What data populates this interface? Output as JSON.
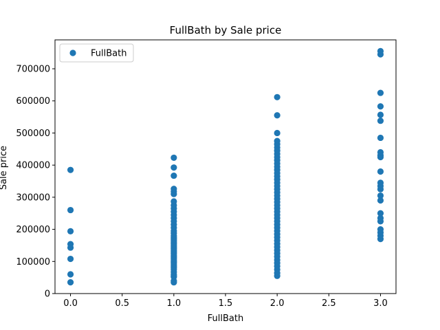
{
  "chart_data": {
    "type": "scatter",
    "title": "FullBath by Sale price",
    "xlabel": "FullBath",
    "ylabel": "Sale price",
    "xlim": [
      -0.15,
      3.15
    ],
    "ylim": [
      0,
      790000
    ],
    "x_ticks": [
      0.0,
      0.5,
      1.0,
      1.5,
      2.0,
      2.5,
      3.0
    ],
    "x_tick_labels": [
      "0.0",
      "0.5",
      "1.0",
      "1.5",
      "2.0",
      "2.5",
      "3.0"
    ],
    "y_ticks": [
      0,
      100000,
      200000,
      300000,
      400000,
      500000,
      600000,
      700000
    ],
    "y_tick_labels": [
      "0",
      "100000",
      "200000",
      "300000",
      "400000",
      "500000",
      "600000",
      "700000"
    ],
    "grid": false,
    "legend_position": "top-left",
    "series": [
      {
        "name": "FullBath",
        "color": "#1f77b4",
        "points": [
          {
            "x": 0,
            "y": 35000
          },
          {
            "x": 0,
            "y": 60000
          },
          {
            "x": 0,
            "y": 108000
          },
          {
            "x": 0,
            "y": 143000
          },
          {
            "x": 0,
            "y": 154000
          },
          {
            "x": 0,
            "y": 194000
          },
          {
            "x": 0,
            "y": 260000
          },
          {
            "x": 0,
            "y": 385000
          },
          {
            "x": 1,
            "y": 34900
          },
          {
            "x": 1,
            "y": 39300
          },
          {
            "x": 1,
            "y": 52000
          },
          {
            "x": 1,
            "y": 55000
          },
          {
            "x": 1,
            "y": 60000
          },
          {
            "x": 1,
            "y": 67000
          },
          {
            "x": 1,
            "y": 75000
          },
          {
            "x": 1,
            "y": 80000
          },
          {
            "x": 1,
            "y": 85000
          },
          {
            "x": 1,
            "y": 90000
          },
          {
            "x": 1,
            "y": 95000
          },
          {
            "x": 1,
            "y": 100000
          },
          {
            "x": 1,
            "y": 105000
          },
          {
            "x": 1,
            "y": 110000
          },
          {
            "x": 1,
            "y": 115000
          },
          {
            "x": 1,
            "y": 120000
          },
          {
            "x": 1,
            "y": 125000
          },
          {
            "x": 1,
            "y": 130000
          },
          {
            "x": 1,
            "y": 135000
          },
          {
            "x": 1,
            "y": 140000
          },
          {
            "x": 1,
            "y": 145000
          },
          {
            "x": 1,
            "y": 150000
          },
          {
            "x": 1,
            "y": 155000
          },
          {
            "x": 1,
            "y": 160000
          },
          {
            "x": 1,
            "y": 165000
          },
          {
            "x": 1,
            "y": 170000
          },
          {
            "x": 1,
            "y": 175000
          },
          {
            "x": 1,
            "y": 180000
          },
          {
            "x": 1,
            "y": 188000
          },
          {
            "x": 1,
            "y": 195000
          },
          {
            "x": 1,
            "y": 205000
          },
          {
            "x": 1,
            "y": 215000
          },
          {
            "x": 1,
            "y": 225000
          },
          {
            "x": 1,
            "y": 235000
          },
          {
            "x": 1,
            "y": 245000
          },
          {
            "x": 1,
            "y": 255000
          },
          {
            "x": 1,
            "y": 265000
          },
          {
            "x": 1,
            "y": 275000
          },
          {
            "x": 1,
            "y": 287000
          },
          {
            "x": 1,
            "y": 310000
          },
          {
            "x": 1,
            "y": 318000
          },
          {
            "x": 1,
            "y": 326000
          },
          {
            "x": 1,
            "y": 367000
          },
          {
            "x": 1,
            "y": 392500
          },
          {
            "x": 1,
            "y": 423000
          },
          {
            "x": 2,
            "y": 55000
          },
          {
            "x": 2,
            "y": 64000
          },
          {
            "x": 2,
            "y": 75000
          },
          {
            "x": 2,
            "y": 85000
          },
          {
            "x": 2,
            "y": 95000
          },
          {
            "x": 2,
            "y": 105000
          },
          {
            "x": 2,
            "y": 115000
          },
          {
            "x": 2,
            "y": 125000
          },
          {
            "x": 2,
            "y": 135000
          },
          {
            "x": 2,
            "y": 145000
          },
          {
            "x": 2,
            "y": 155000
          },
          {
            "x": 2,
            "y": 165000
          },
          {
            "x": 2,
            "y": 175000
          },
          {
            "x": 2,
            "y": 185000
          },
          {
            "x": 2,
            "y": 195000
          },
          {
            "x": 2,
            "y": 205000
          },
          {
            "x": 2,
            "y": 215000
          },
          {
            "x": 2,
            "y": 225000
          },
          {
            "x": 2,
            "y": 235000
          },
          {
            "x": 2,
            "y": 245000
          },
          {
            "x": 2,
            "y": 255000
          },
          {
            "x": 2,
            "y": 265000
          },
          {
            "x": 2,
            "y": 275000
          },
          {
            "x": 2,
            "y": 285000
          },
          {
            "x": 2,
            "y": 295000
          },
          {
            "x": 2,
            "y": 305000
          },
          {
            "x": 2,
            "y": 315000
          },
          {
            "x": 2,
            "y": 325000
          },
          {
            "x": 2,
            "y": 335000
          },
          {
            "x": 2,
            "y": 345000
          },
          {
            "x": 2,
            "y": 355000
          },
          {
            "x": 2,
            "y": 365000
          },
          {
            "x": 2,
            "y": 375000
          },
          {
            "x": 2,
            "y": 385000
          },
          {
            "x": 2,
            "y": 395000
          },
          {
            "x": 2,
            "y": 405000
          },
          {
            "x": 2,
            "y": 415000
          },
          {
            "x": 2,
            "y": 425000
          },
          {
            "x": 2,
            "y": 435000
          },
          {
            "x": 2,
            "y": 445000
          },
          {
            "x": 2,
            "y": 455000
          },
          {
            "x": 2,
            "y": 465000
          },
          {
            "x": 2,
            "y": 475000
          },
          {
            "x": 2,
            "y": 500000
          },
          {
            "x": 2,
            "y": 555000
          },
          {
            "x": 2,
            "y": 611657
          },
          {
            "x": 3,
            "y": 170000
          },
          {
            "x": 3,
            "y": 180000
          },
          {
            "x": 3,
            "y": 190000
          },
          {
            "x": 3,
            "y": 200000
          },
          {
            "x": 3,
            "y": 225000
          },
          {
            "x": 3,
            "y": 235000
          },
          {
            "x": 3,
            "y": 250000
          },
          {
            "x": 3,
            "y": 290000
          },
          {
            "x": 3,
            "y": 305000
          },
          {
            "x": 3,
            "y": 325000
          },
          {
            "x": 3,
            "y": 335000
          },
          {
            "x": 3,
            "y": 345000
          },
          {
            "x": 3,
            "y": 380000
          },
          {
            "x": 3,
            "y": 425000
          },
          {
            "x": 3,
            "y": 430000
          },
          {
            "x": 3,
            "y": 440000
          },
          {
            "x": 3,
            "y": 485000
          },
          {
            "x": 3,
            "y": 538000
          },
          {
            "x": 3,
            "y": 556581
          },
          {
            "x": 3,
            "y": 582933
          },
          {
            "x": 3,
            "y": 625000
          },
          {
            "x": 3,
            "y": 745000
          },
          {
            "x": 3,
            "y": 755000
          }
        ]
      }
    ]
  }
}
